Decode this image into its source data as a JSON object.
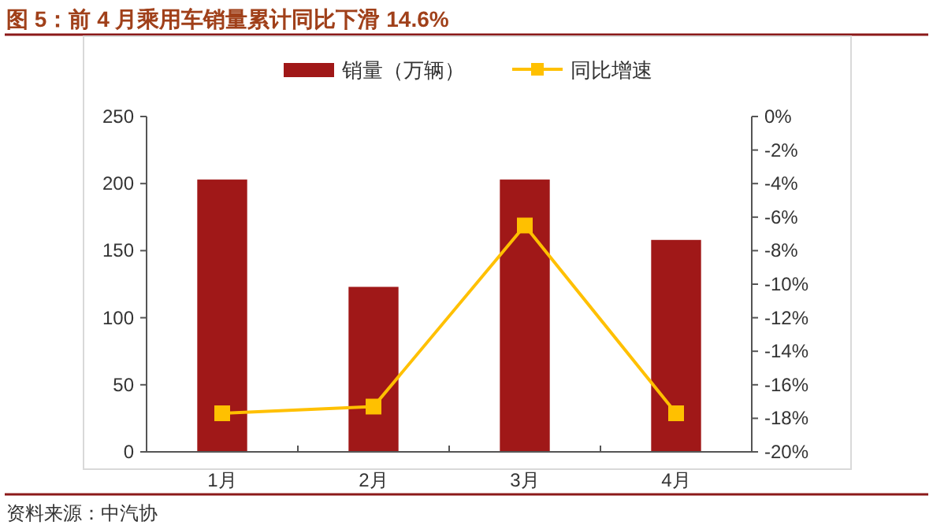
{
  "chart_data": {
    "type": "bar",
    "title": "图 5：前 4 月乘用车销量累计同比下滑 14.6%",
    "categories": [
      "1月",
      "2月",
      "3月",
      "4月"
    ],
    "series": [
      {
        "name": "销量（万辆）",
        "color": "#a01818",
        "values": [
          203,
          123,
          203,
          158
        ]
      },
      {
        "name": "同比增速",
        "type": "line",
        "axis": "y2",
        "color": "#ffc000",
        "marker": "square",
        "values": [
          -17.7,
          -17.3,
          -6.5,
          -17.7
        ]
      }
    ],
    "ylim": [
      0,
      250
    ],
    "yticks": [
      0,
      50,
      100,
      150,
      200,
      250
    ],
    "y2lim": [
      -20,
      0
    ],
    "y2ticks": [
      {
        "value": 0,
        "label": "0%"
      },
      {
        "value": -2,
        "label": "-2%"
      },
      {
        "value": -4,
        "label": "-4%"
      },
      {
        "value": -6,
        "label": "-6%"
      },
      {
        "value": -8,
        "label": "-8%"
      },
      {
        "value": -10,
        "label": "-10%"
      },
      {
        "value": -12,
        "label": "-12%"
      },
      {
        "value": -14,
        "label": "-14%"
      },
      {
        "value": -16,
        "label": "-16%"
      },
      {
        "value": -18,
        "label": "-18%"
      },
      {
        "value": -20,
        "label": "-20%"
      }
    ],
    "legend": "top",
    "annotations": [
      "资料来源：中汽协"
    ]
  }
}
